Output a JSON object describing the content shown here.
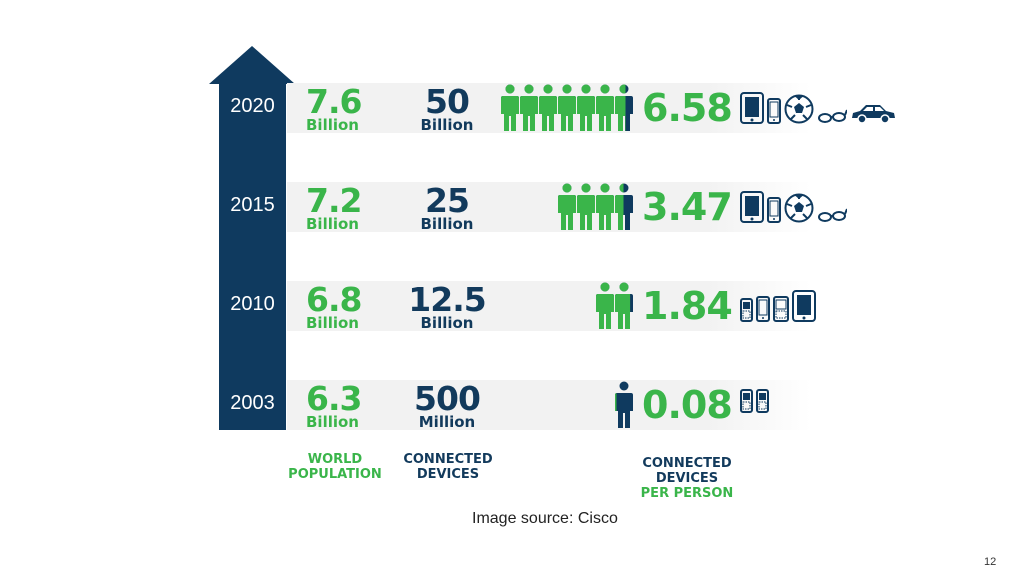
{
  "chart_data": {
    "type": "table",
    "columns": [
      "WORLD POPULATION",
      "CONNECTED DEVICES",
      "CONNECTED DEVICES PER PERSON"
    ],
    "rows": [
      {
        "year": "2020",
        "population": "7.6",
        "population_unit": "Billion",
        "devices": "50",
        "devices_unit": "Billion",
        "per_person": "6.58",
        "person_icons": 6.58,
        "device_icons": [
          "tablet-icon",
          "phone-icon",
          "soccer-ball-icon",
          "glasses-icon",
          "car-icon"
        ]
      },
      {
        "year": "2015",
        "population": "7.2",
        "population_unit": "Billion",
        "devices": "25",
        "devices_unit": "Billion",
        "per_person": "3.47",
        "person_icons": 3.47,
        "device_icons": [
          "tablet-icon",
          "phone-icon",
          "soccer-ball-icon",
          "glasses-icon"
        ]
      },
      {
        "year": "2010",
        "population": "6.8",
        "population_unit": "Billion",
        "devices": "12.5",
        "devices_unit": "Billion",
        "per_person": "1.84",
        "person_icons": 1.84,
        "device_icons": [
          "feature-phone-icon",
          "smartphone-icon",
          "blackberry-icon",
          "tablet-icon"
        ]
      },
      {
        "year": "2003",
        "population": "6.3",
        "population_unit": "Billion",
        "devices": "500",
        "devices_unit": "Million",
        "per_person": "0.08",
        "person_icons": 0.08,
        "device_icons": [
          "feature-phone-icon",
          "feature-phone-icon"
        ]
      }
    ]
  },
  "labels": {
    "population_line1": "WORLD",
    "population_line2": "POPULATION",
    "devices_line1": "CONNECTED",
    "devices_line2": "DEVICES",
    "per_line1": "CONNECTED",
    "per_line2": "DEVICES",
    "per_line3": "PER PERSON"
  },
  "source": "Image source: Cisco",
  "page_number": "12",
  "colors": {
    "navy": "#0f3a5f",
    "green": "#3ab54a",
    "band": "#f2f2f2"
  }
}
